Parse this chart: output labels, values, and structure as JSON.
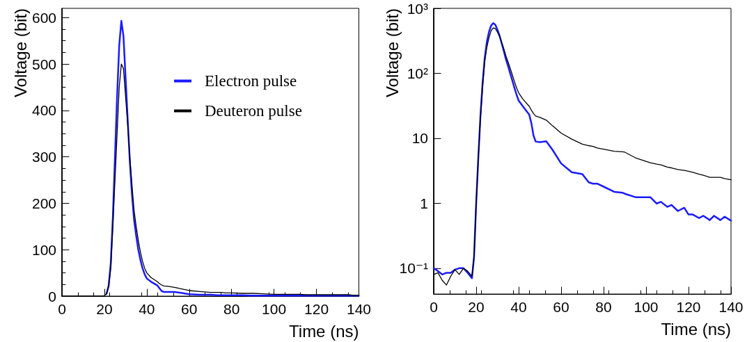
{
  "chart_data": [
    {
      "type": "line",
      "xlabel": "Time (ns)",
      "ylabel": "Voltage (bit)",
      "xlim": [
        0,
        140
      ],
      "xticks": [
        0,
        20,
        40,
        60,
        80,
        100,
        120,
        140
      ],
      "ylim": [
        0,
        620
      ],
      "yticks": [
        0,
        100,
        200,
        300,
        400,
        500,
        600
      ],
      "grid": false,
      "legend": "top right",
      "line_style": "solid",
      "x": [
        0,
        2,
        4,
        6,
        8,
        10,
        12,
        14,
        16,
        18,
        19,
        20,
        21,
        22,
        23,
        24,
        25,
        26,
        27,
        28,
        29,
        30,
        31,
        32,
        33,
        34,
        35,
        36,
        37,
        38,
        39,
        40,
        42,
        45,
        46,
        47,
        48,
        50,
        53,
        56,
        60,
        65,
        70,
        73,
        75,
        77,
        80,
        85,
        89,
        90,
        95,
        100,
        102,
        105,
        107,
        110,
        112,
        115,
        118,
        120,
        122,
        125,
        127,
        130,
        132,
        135,
        137,
        140
      ],
      "series": [
        {
          "name": "Electron pulse",
          "color": "#1a1aff",
          "values": [
            null,
            null,
            null,
            null,
            null,
            null,
            null,
            null,
            null,
            null,
            null,
            null,
            5,
            22,
            70,
            170,
            300,
            430,
            540,
            593,
            560,
            470,
            380,
            290,
            220,
            165,
            130,
            100,
            78,
            60,
            47,
            38,
            31,
            23,
            17,
            11,
            9,
            9,
            9,
            7,
            4,
            3,
            3,
            2,
            2,
            2,
            2,
            2,
            1,
            1,
            1,
            1,
            1,
            1,
            1,
            1,
            1,
            1,
            1,
            1,
            1,
            1,
            1,
            1,
            1,
            1,
            1,
            1
          ]
        },
        {
          "name": "Deuteron pulse",
          "color": "#000000",
          "values": [
            0,
            0,
            0,
            0,
            0,
            0,
            0,
            0,
            0,
            0,
            0,
            1,
            5,
            20,
            60,
            150,
            250,
            350,
            450,
            500,
            490,
            430,
            370,
            300,
            240,
            185,
            150,
            120,
            95,
            75,
            60,
            50,
            40,
            31,
            27,
            24,
            22,
            21,
            19,
            16,
            12,
            10,
            8,
            8,
            8,
            7,
            7,
            6,
            6,
            6,
            5,
            4,
            4,
            4,
            4,
            4,
            4,
            3,
            3,
            3,
            3,
            3,
            3,
            3,
            3,
            3,
            2,
            2
          ]
        }
      ]
    },
    {
      "type": "line",
      "xlabel": "Time (ns)",
      "ylabel": "Voltage (bit)",
      "log": "y",
      "xlim": [
        0,
        140
      ],
      "xticks": [
        0,
        20,
        40,
        60,
        80,
        100,
        120,
        140
      ],
      "ylim": [
        0.04,
        1000
      ],
      "yticks": [
        {
          "value": 0.1,
          "label": "10⁻¹"
        },
        1,
        10,
        {
          "value": 100,
          "label": "10²"
        },
        {
          "value": 1000,
          "label": "10³"
        }
      ],
      "grid": false,
      "line_style": "solid",
      "x": [
        0,
        2,
        4,
        6,
        8,
        10,
        12,
        14,
        16,
        18,
        19,
        20,
        21,
        22,
        23,
        24,
        25,
        26,
        27,
        28,
        29,
        30,
        31,
        32,
        33,
        34,
        35,
        36,
        37,
        38,
        39,
        40,
        42,
        45,
        46,
        47,
        48,
        50,
        53,
        56,
        60,
        65,
        70,
        73,
        75,
        77,
        80,
        85,
        89,
        90,
        95,
        100,
        102,
        105,
        107,
        110,
        112,
        115,
        118,
        120,
        122,
        125,
        127,
        130,
        132,
        135,
        137,
        140
      ],
      "series": [
        {
          "color": "#1a1aff",
          "values": [
            0.1,
            0.09,
            0.08,
            0.085,
            0.085,
            0.095,
            0.1,
            0.1,
            0.085,
            0.07,
            0.15,
            1,
            5,
            22,
            70,
            170,
            300,
            430,
            540,
            593,
            560,
            470,
            380,
            290,
            220,
            165,
            130,
            100,
            78,
            60,
            47,
            38,
            31,
            23,
            17,
            11,
            8.9,
            8.7,
            9,
            6.6,
            4.1,
            3,
            2.8,
            2.1,
            2,
            2,
            1.8,
            1.5,
            1.45,
            1.4,
            1.24,
            1.24,
            1.24,
            0.99,
            1.05,
            0.88,
            0.94,
            0.76,
            0.85,
            0.67,
            0.67,
            0.59,
            0.64,
            0.55,
            0.64,
            0.55,
            0.62,
            0.54
          ]
        },
        {
          "color": "#000000",
          "values": [
            0.08,
            0.085,
            0.065,
            0.055,
            0.075,
            0.095,
            0.08,
            0.1,
            0.09,
            0.075,
            0.15,
            1,
            5,
            20,
            60,
            150,
            250,
            350,
            450,
            500,
            490,
            430,
            370,
            300,
            240,
            185,
            150,
            120,
            95,
            75,
            60,
            50,
            40,
            31,
            27,
            24,
            22,
            21,
            19,
            15.5,
            12,
            9.7,
            8.1,
            7.7,
            7.5,
            7.1,
            6.8,
            6.3,
            6.2,
            6.1,
            5,
            4.4,
            4.2,
            4,
            3.9,
            3.6,
            3.5,
            3.3,
            3.2,
            3.1,
            3,
            2.8,
            2.7,
            2.5,
            2.5,
            2.5,
            2.4,
            2.3
          ]
        }
      ]
    }
  ]
}
